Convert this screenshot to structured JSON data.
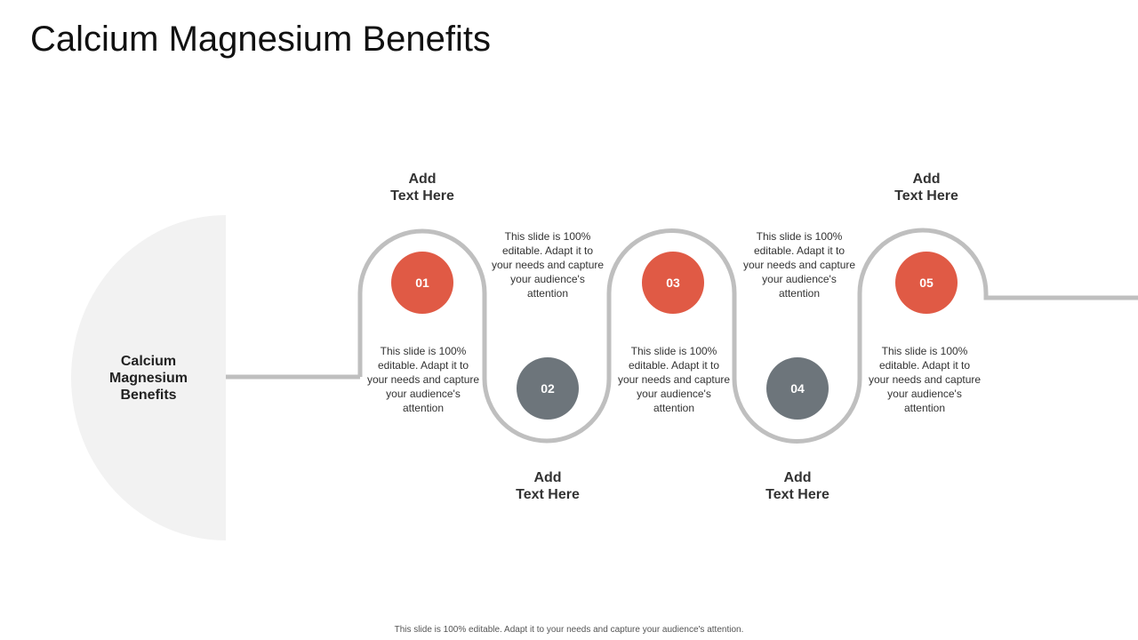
{
  "page": {
    "title": "Calcium Magnesium Benefits"
  },
  "center": {
    "label": "Calcium Magnesium Benefits"
  },
  "colors": {
    "accent": "#E05A45",
    "secondary": "#6D757B",
    "track": "#BFBFBF",
    "semicircle": "#F2F2F2"
  },
  "steps": [
    {
      "number": "01",
      "heading": "Add\nText Here",
      "description": "This slide is 100% editable. Adapt it to your needs and capture your audience's attention",
      "color": "#E05A45"
    },
    {
      "number": "02",
      "heading": "Add\nText Here",
      "description": "This slide is 100% editable. Adapt it to your needs and capture your audience's attention",
      "color": "#6D757B"
    },
    {
      "number": "03",
      "heading": "Add\nText Here",
      "description": "This slide is 100% editable. Adapt it to your needs and capture your audience's attention",
      "color": "#E05A45"
    },
    {
      "number": "04",
      "heading": "Add\nText Here",
      "description": "This slide is 100% editable. Adapt it to your needs and capture your audience's attention",
      "color": "#6D757B"
    },
    {
      "number": "05",
      "heading": "Add\nText Here",
      "description": "This slide is 100% editable. Adapt it to your needs and capture your audience's attention",
      "color": "#E05A45"
    }
  ],
  "footer": {
    "text": "This slide is 100% editable. Adapt it to your needs and capture your audience's attention."
  }
}
